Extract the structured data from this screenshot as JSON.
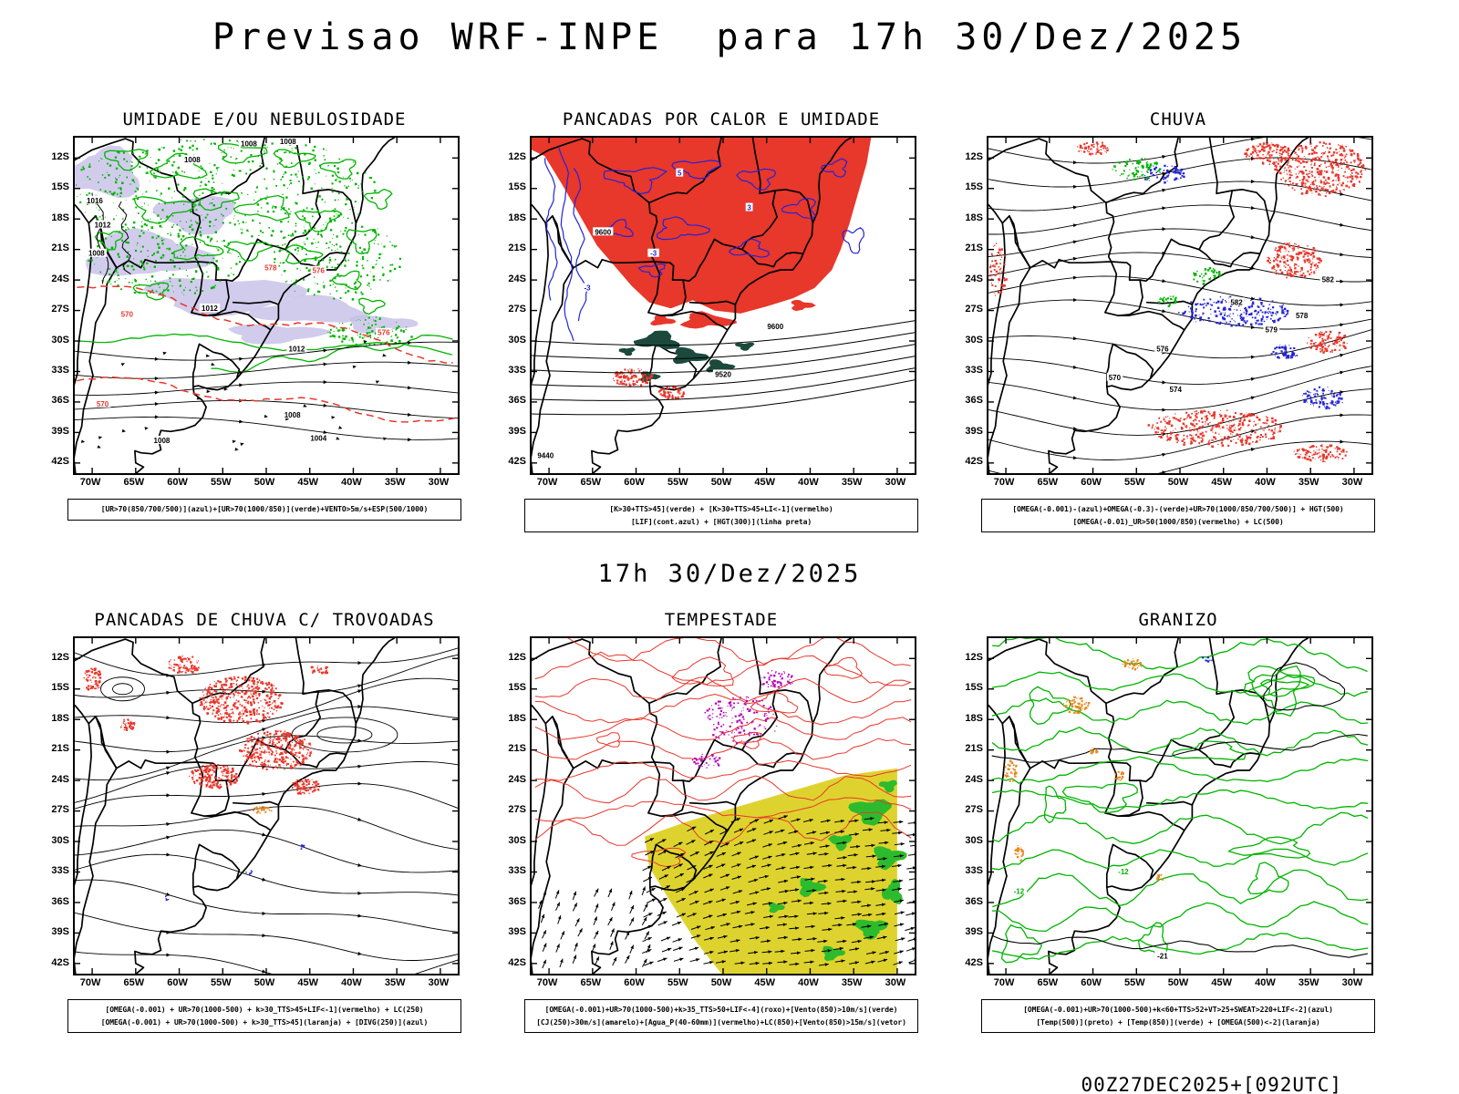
{
  "header": {
    "title": "Previsao WRF-INPE  para 17h 30/Dez/2025"
  },
  "subtitle": "17h 30/Dez/2025",
  "footer": "00Z27DEC2025+[092UTC]",
  "axes": {
    "lat_labels": [
      "12S",
      "15S",
      "18S",
      "21S",
      "24S",
      "27S",
      "30S",
      "33S",
      "36S",
      "39S",
      "42S"
    ],
    "lon_labels": [
      "70W",
      "65W",
      "60W",
      "55W",
      "50W",
      "45W",
      "40W",
      "35W",
      "30W"
    ]
  },
  "colors": {
    "red": "#e8372b",
    "green": "#00b400",
    "dark_green": "#1b4a3c",
    "lavender": "#c5bfe7",
    "blue": "#2424d6",
    "orange": "#e5891f",
    "yellow": "#ded32e",
    "storm_green": "#2dbb2d",
    "magenta": "#b400b4",
    "black": "#000000"
  },
  "panels": [
    {
      "id": "umidade",
      "title": "UMIDADE E/OU NEBULOSIDADE",
      "caption_lines": [
        "[UR>70(850/700/500)](azul)+[UR>70(1000/850)](verde)+VENTO>5m/s+ESP(500/1000)"
      ],
      "map_labels": [
        {
          "text": "1008",
          "lon": -52,
          "lat": -10.7,
          "color": "black"
        },
        {
          "text": "1008",
          "lon": -47.5,
          "lat": -10.5,
          "color": "black"
        },
        {
          "text": "1008",
          "lon": -58.5,
          "lat": -12.3,
          "color": "black"
        },
        {
          "text": "1016",
          "lon": -69.7,
          "lat": -16.3,
          "color": "black"
        },
        {
          "text": "1012",
          "lon": -68.8,
          "lat": -18.7,
          "color": "black"
        },
        {
          "text": "1008",
          "lon": -69.5,
          "lat": -21.5,
          "color": "black"
        },
        {
          "text": "1012",
          "lon": -56.5,
          "lat": -26.9,
          "color": "black"
        },
        {
          "text": "1012",
          "lon": -46.5,
          "lat": -30.9,
          "color": "black"
        },
        {
          "text": "1008",
          "lon": -47,
          "lat": -37.4,
          "color": "black"
        },
        {
          "text": "1008",
          "lon": -62,
          "lat": -39.9,
          "color": "black"
        },
        {
          "text": "1004",
          "lon": -44,
          "lat": -39.7,
          "color": "black"
        },
        {
          "text": "578",
          "lon": -49.5,
          "lat": -22.9,
          "color": "red"
        },
        {
          "text": "576",
          "lon": -44,
          "lat": -23.2,
          "color": "red"
        },
        {
          "text": "576",
          "lon": -36.5,
          "lat": -29.3,
          "color": "red"
        },
        {
          "text": "570",
          "lon": -68.8,
          "lat": -36.3,
          "color": "red"
        },
        {
          "text": "570",
          "lon": -66,
          "lat": -27.5,
          "color": "red"
        }
      ]
    },
    {
      "id": "pancadas-calor",
      "title": "PANCADAS POR CALOR E UMIDADE",
      "caption_lines": [
        "[K>30+TTS>45](verde) + [K>30+TTS>45+LI<-1](vermelho)",
        "[LIF](cont.azul) + [HGT(300)](linha preta)"
      ],
      "map_labels": [
        {
          "text": "9600",
          "lon": -63.8,
          "lat": -19.4,
          "color": "black"
        },
        {
          "text": "9600",
          "lon": -44,
          "lat": -28.7,
          "color": "black"
        },
        {
          "text": "9520",
          "lon": -50,
          "lat": -33.4,
          "color": "black"
        },
        {
          "text": "9440",
          "lon": -70.4,
          "lat": -41.4,
          "color": "black"
        },
        {
          "text": "5",
          "lon": -55,
          "lat": -13.6,
          "color": "blue"
        },
        {
          "text": "-3",
          "lon": -65.6,
          "lat": -24.9,
          "color": "blue"
        },
        {
          "text": "3",
          "lon": -47,
          "lat": -17,
          "color": "blue"
        },
        {
          "text": "-3",
          "lon": -58,
          "lat": -21.5,
          "color": "blue"
        }
      ]
    },
    {
      "id": "chuva",
      "title": "CHUVA",
      "caption_lines": [
        "[OMEGA(-0.001)-(azul)+OMEGA(-0.3)-(verde)+UR>70(1000/850/700/500)] + HGT(500)",
        "[OMEGA(-0.01)_UR>50(1000/850)(vermelho) + LC(500)"
      ],
      "map_labels": [
        {
          "text": "582",
          "lon": -43.5,
          "lat": -26.3,
          "color": "black"
        },
        {
          "text": "576",
          "lon": -52,
          "lat": -30.9,
          "color": "black"
        },
        {
          "text": "570",
          "lon": -57.5,
          "lat": -33.7,
          "color": "black"
        },
        {
          "text": "574",
          "lon": -50.5,
          "lat": -34.9,
          "color": "black"
        },
        {
          "text": "578",
          "lon": -36,
          "lat": -27.6,
          "color": "black"
        },
        {
          "text": "582",
          "lon": -33,
          "lat": -24.1,
          "color": "black"
        },
        {
          "text": "579",
          "lon": -39.5,
          "lat": -29,
          "color": "black"
        }
      ]
    },
    {
      "id": "trovoadas",
      "title": "PANCADAS DE CHUVA C/ TROVOADAS",
      "caption_lines": [
        "[OMEGA(-0.001) + UR>70(1000-500) + k>30_TTS>45+LIF<-1](vermelho) + LC(250)",
        "[OMEGA(-0.001) + UR>70(1000-500) + k>30_TTS>45](laranja) + [DIVG(250)](azul)"
      ],
      "map_labels": []
    },
    {
      "id": "tempestade",
      "title": "TEMPESTADE",
      "caption_lines": [
        "[OMEGA(-0.001)+UR>70(1000-500)+k>35_TTS>50+LIF<-4](roxo)+[Vento(850)>10m/s](verde)",
        "[CJ(250)>30m/s](amarelo)+[Agua_P(40-60mm)](vermelho)+LC(850)+[Vento(850)>15m/s](vetor)"
      ],
      "map_labels": []
    },
    {
      "id": "granizo",
      "title": "GRANIZO",
      "caption_lines": [
        "[OMEGA(-0.001)+UR>70(1000-500)+k<60+TTS>52+VT>25+SWEAT>220+LIF<-2](azul)",
        "[Temp(500)](preto) + [Temp(850)](verde) + [OMEGA(500)<-2](laranja)"
      ],
      "map_labels": [
        {
          "text": "-12",
          "lon": -56.5,
          "lat": -33.1,
          "color": "green"
        },
        {
          "text": "-21",
          "lon": -52,
          "lat": -41.4,
          "color": "black"
        },
        {
          "text": "-12",
          "lon": -68.5,
          "lat": -35,
          "color": "green"
        }
      ]
    }
  ]
}
